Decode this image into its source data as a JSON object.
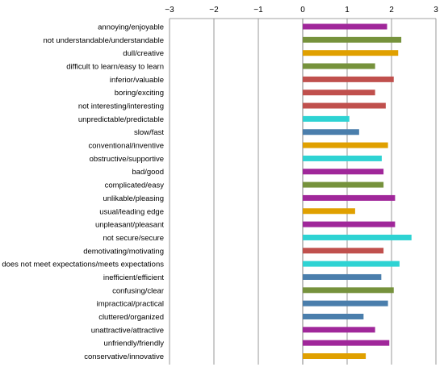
{
  "chart_data": {
    "type": "bar",
    "orientation": "horizontal",
    "xlim": [
      -3,
      3
    ],
    "x_ticks": [
      -3,
      -2,
      -1,
      0,
      1,
      2,
      3
    ],
    "tick_position": "top",
    "grid": "vertical",
    "legend": "none",
    "title": "",
    "xlabel": "",
    "ylabel": "",
    "categories": [
      "annoying/enjoyable",
      "not understandable/understandable",
      "dull/creative",
      "difficult to learn/easy to learn",
      "inferior/valuable",
      "boring/exciting",
      "not interesting/interesting",
      "unpredictable/predictable",
      "slow/fast",
      "conventional/inventive",
      "obstructive/supportive",
      "bad/good",
      "complicated/easy",
      "unlikable/pleasing",
      "usual/leading edge",
      "unpleasant/pleasant",
      "not secure/secure",
      "demotivating/motivating",
      "does not meet expectations/meets expectations",
      "inefficient/efficient",
      "confusing/clear",
      "impractical/practical",
      "cluttered/organized",
      "unattractive/attractive",
      "unfriendly/friendly",
      "conservative/innovative"
    ],
    "values": [
      1.9,
      2.22,
      2.15,
      1.63,
      2.05,
      1.63,
      1.87,
      1.05,
      1.27,
      1.92,
      1.78,
      1.82,
      1.82,
      2.08,
      1.18,
      2.08,
      2.45,
      1.82,
      2.18,
      1.77,
      2.05,
      1.92,
      1.37,
      1.63,
      1.95,
      1.42
    ],
    "colors": [
      "#a0279a",
      "#76923c",
      "#e0a000",
      "#76923c",
      "#c0504d",
      "#c0504d",
      "#c0504d",
      "#2ed3d3",
      "#4a7eac",
      "#e0a000",
      "#2ed3d3",
      "#a0279a",
      "#76923c",
      "#a0279a",
      "#e0a000",
      "#a0279a",
      "#2ed3d3",
      "#c0504d",
      "#2ed3d3",
      "#4a7eac",
      "#76923c",
      "#4a7eac",
      "#4a7eac",
      "#a0279a",
      "#a0279a",
      "#e0a000"
    ]
  }
}
